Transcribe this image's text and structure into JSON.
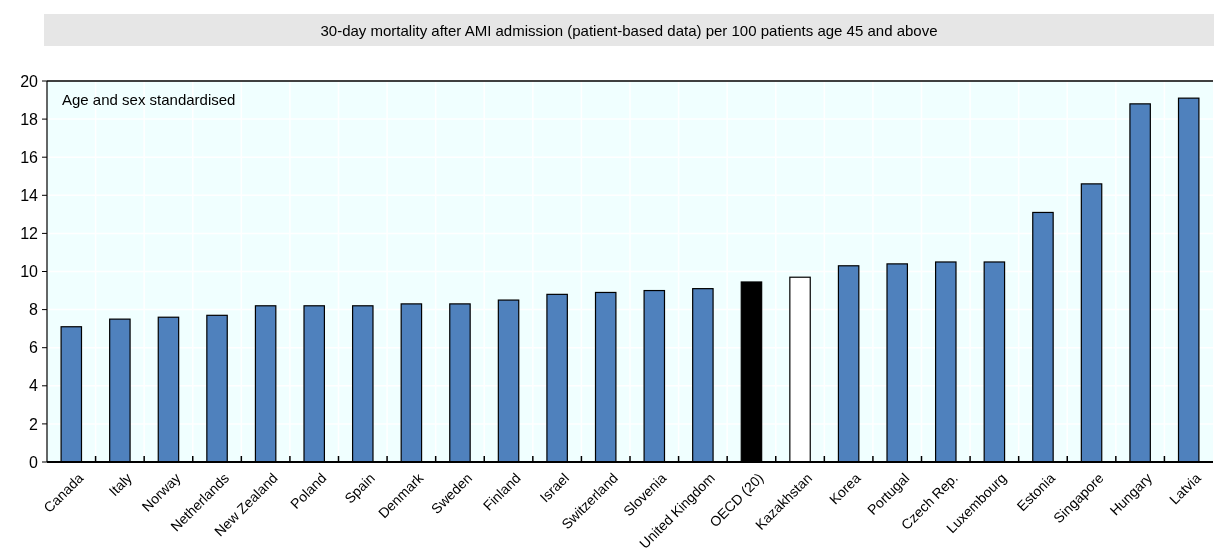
{
  "chart_data": {
    "type": "bar",
    "title": "30-day mortality after AMI admission (patient-based data) per 100 patients age 45 and above",
    "annotations": [
      "Age and sex standardised"
    ],
    "categories": [
      "Canada",
      "Italy",
      "Norway",
      "Netherlands",
      "New Zealand",
      "Poland",
      "Spain",
      "Denmark",
      "Sweden",
      "Finland",
      "Israel",
      "Switzerland",
      "Slovenia",
      "United Kingdom",
      "OECD (20)",
      "Kazakhstan",
      "Korea",
      "Portugal",
      "Czech Rep.",
      "Luxembourg",
      "Estonia",
      "Singapore",
      "Hungary",
      "Latvia"
    ],
    "values": [
      7.1,
      7.5,
      7.6,
      7.7,
      8.2,
      8.2,
      8.2,
      8.3,
      8.3,
      8.5,
      8.8,
      8.9,
      9.0,
      9.1,
      9.45,
      9.7,
      10.3,
      10.4,
      10.5,
      10.5,
      13.1,
      14.6,
      18.8,
      19.1
    ],
    "colors": [
      "#4f81bd",
      "#4f81bd",
      "#4f81bd",
      "#4f81bd",
      "#4f81bd",
      "#4f81bd",
      "#4f81bd",
      "#4f81bd",
      "#4f81bd",
      "#4f81bd",
      "#4f81bd",
      "#4f81bd",
      "#4f81bd",
      "#4f81bd",
      "#000000",
      "#ffffff",
      "#4f81bd",
      "#4f81bd",
      "#4f81bd",
      "#4f81bd",
      "#4f81bd",
      "#4f81bd",
      "#4f81bd",
      "#4f81bd"
    ],
    "ylim": [
      0,
      20
    ],
    "yticks": [
      0,
      2,
      4,
      6,
      8,
      10,
      12,
      14,
      16,
      18,
      20
    ],
    "grid": true
  }
}
